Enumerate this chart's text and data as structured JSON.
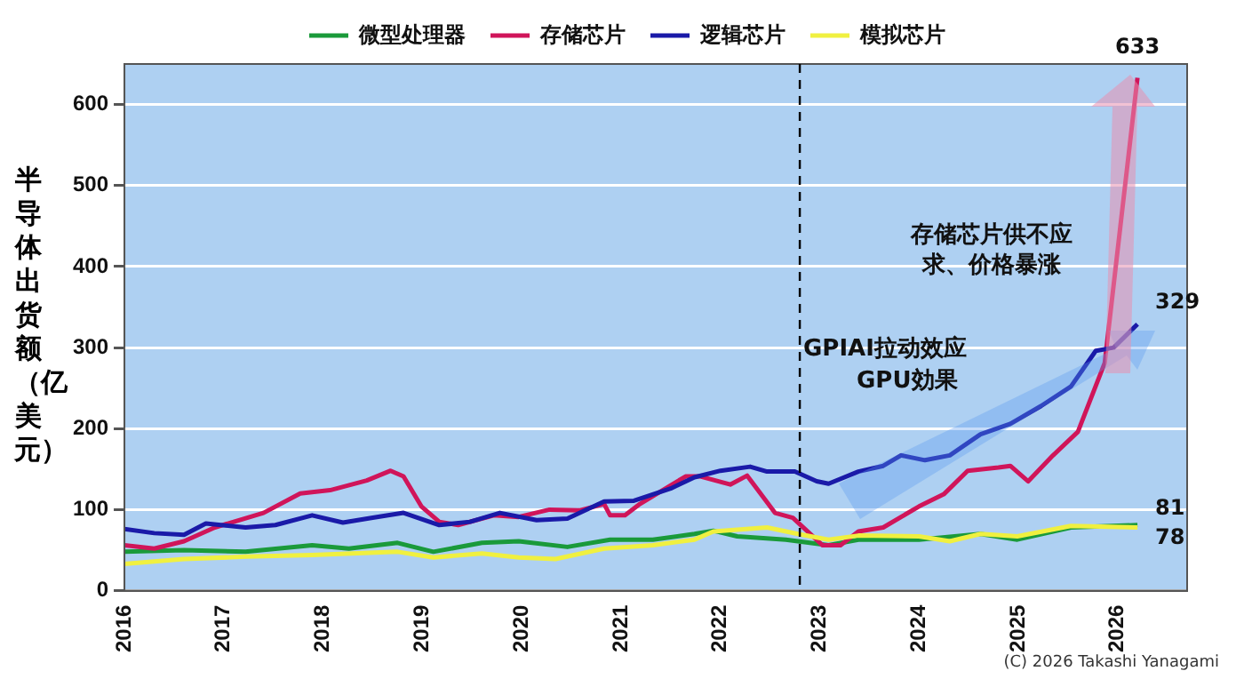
{
  "chart_data": {
    "type": "line",
    "ylabel": "半导体出货额（亿美元）",
    "legend": "top",
    "grid": "y",
    "marker": "none",
    "line_style": "solid",
    "xlim": [
      2016,
      2026.7
    ],
    "xticks": [
      2016,
      2017,
      2018,
      2019,
      2020,
      2021,
      2022,
      2023,
      2024,
      2025,
      2026
    ],
    "ylim": [
      0,
      650
    ],
    "yticks": [
      0,
      100,
      200,
      300,
      400,
      500,
      600
    ],
    "series": [
      {
        "name": "微型处理器",
        "color": "#1a9a3a",
        "x": [
          2016.0,
          2016.6,
          2017.22,
          2017.89,
          2018.26,
          2018.75,
          2019.11,
          2019.6,
          2019.97,
          2020.46,
          2020.89,
          2021.32,
          2021.74,
          2021.93,
          2022.17,
          2022.66,
          2023.09,
          2023.39,
          2024.0,
          2024.62,
          2024.99,
          2025.53,
          2026.2
        ],
        "values": [
          48,
          50,
          48,
          56,
          52,
          59,
          48,
          59,
          61,
          54,
          63,
          63,
          70,
          74,
          67,
          63,
          56,
          63,
          63,
          70,
          63,
          78,
          81
        ],
        "value_labels": [
          null,
          null,
          null,
          null,
          null,
          null,
          null,
          null,
          null,
          null,
          null,
          null,
          null,
          null,
          null,
          null,
          null,
          null,
          null,
          null,
          null,
          null,
          "81"
        ]
      },
      {
        "name": "存储芯片",
        "color": "#d0155a",
        "x": [
          2016.0,
          2016.3,
          2016.6,
          2016.91,
          2017.4,
          2017.77,
          2018.07,
          2018.44,
          2018.68,
          2018.81,
          2018.99,
          2019.17,
          2019.36,
          2019.72,
          2019.97,
          2020.28,
          2020.58,
          2020.83,
          2020.89,
          2021.04,
          2021.19,
          2021.5,
          2021.65,
          2021.8,
          2022.1,
          2022.27,
          2022.55,
          2022.73,
          2023.03,
          2023.21,
          2023.39,
          2023.64,
          2024.0,
          2024.25,
          2024.49,
          2024.8,
          2024.92,
          2025.1,
          2025.35,
          2025.6,
          2025.87,
          2026.0,
          2026.2
        ],
        "values": [
          56,
          52,
          61,
          78,
          96,
          120,
          124,
          136,
          148,
          141,
          104,
          85,
          81,
          93,
          91,
          100,
          99,
          107,
          93,
          93,
          107,
          130,
          141,
          141,
          131,
          142,
          96,
          90,
          56,
          56,
          73,
          78,
          104,
          119,
          148,
          152,
          154,
          135,
          167,
          196,
          281,
          420,
          633
        ],
        "value_labels": [
          null,
          null,
          null,
          null,
          null,
          null,
          null,
          null,
          null,
          null,
          null,
          null,
          null,
          null,
          null,
          null,
          null,
          null,
          null,
          null,
          null,
          null,
          null,
          null,
          null,
          null,
          null,
          null,
          null,
          null,
          null,
          null,
          null,
          null,
          null,
          null,
          null,
          null,
          null,
          null,
          null,
          null,
          "633"
        ]
      },
      {
        "name": "逻辑芯片",
        "color": "#1a1aa8",
        "x": [
          2016.0,
          2016.3,
          2016.6,
          2016.82,
          2017.22,
          2017.52,
          2017.89,
          2018.2,
          2018.5,
          2018.81,
          2019.17,
          2019.48,
          2019.78,
          2020.15,
          2020.46,
          2020.83,
          2021.13,
          2021.5,
          2021.74,
          2022.0,
          2022.3,
          2022.47,
          2022.75,
          2022.97,
          2023.09,
          2023.39,
          2023.64,
          2023.82,
          2024.06,
          2024.31,
          2024.62,
          2024.92,
          2025.23,
          2025.53,
          2025.78,
          2025.96,
          2026.2
        ],
        "values": [
          76,
          71,
          69,
          83,
          78,
          81,
          93,
          84,
          90,
          96,
          81,
          85,
          96,
          87,
          89,
          110,
          111,
          126,
          140,
          148,
          153,
          147,
          147,
          135,
          132,
          147,
          154,
          167,
          161,
          167,
          193,
          206,
          228,
          252,
          296,
          300,
          329
        ],
        "value_labels": [
          null,
          null,
          null,
          null,
          null,
          null,
          null,
          null,
          null,
          null,
          null,
          null,
          null,
          null,
          null,
          null,
          null,
          null,
          null,
          null,
          null,
          null,
          null,
          null,
          null,
          null,
          null,
          null,
          null,
          null,
          null,
          null,
          null,
          null,
          null,
          null,
          "329"
        ]
      },
      {
        "name": "模拟芯片",
        "color": "#f0f040",
        "x": [
          2016.0,
          2016.6,
          2017.22,
          2017.89,
          2018.75,
          2019.11,
          2019.6,
          2019.97,
          2020.34,
          2020.83,
          2021.32,
          2021.74,
          2021.93,
          2022.47,
          2022.78,
          2023.09,
          2023.39,
          2024.0,
          2024.31,
          2024.62,
          2024.99,
          2025.53,
          2026.2
        ],
        "values": [
          33,
          39,
          42,
          44,
          48,
          41,
          46,
          41,
          39,
          52,
          56,
          63,
          73,
          78,
          70,
          63,
          68,
          67,
          61,
          70,
          67,
          80,
          78
        ],
        "value_labels": [
          null,
          null,
          null,
          null,
          null,
          null,
          null,
          null,
          null,
          null,
          null,
          null,
          null,
          null,
          null,
          null,
          null,
          null,
          null,
          null,
          null,
          null,
          "78"
        ]
      }
    ],
    "ref_lines": [
      {
        "axis": "x",
        "value": 2022.8,
        "line_style": "dashed",
        "color": "#000000"
      }
    ],
    "annotations": [
      "存储芯片供不应求、价格暴涨",
      "GPIAI拉动效应",
      "GPU効果",
      "(C) 2026 Takashi Yanagami"
    ]
  }
}
